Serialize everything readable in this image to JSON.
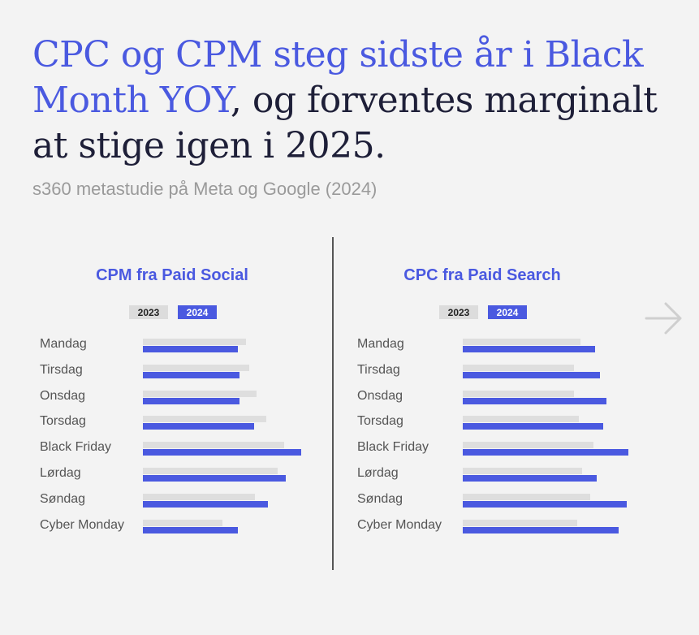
{
  "headline": {
    "highlight": "CPC og CPM steg sidste år i Black Month YOY",
    "rest": ", og forventes marginalt at stige igen i 2025."
  },
  "subtitle": "s360 metastudie på Meta og Google (2024)",
  "colors": {
    "accent": "#4a59e0",
    "bar_2023": "#dedede",
    "text": "#1e1f38"
  },
  "icons": {
    "next": "arrow-right-icon"
  },
  "chart_data": [
    {
      "type": "bar",
      "orientation": "horizontal",
      "title": "CPM fra Paid Social",
      "legend": [
        "2023",
        "2024"
      ],
      "categories": [
        "Mandag",
        "Tirsdag",
        "Onsdag",
        "Torsdag",
        "Black Friday",
        "Lørdag",
        "Søndag",
        "Cyber Monday"
      ],
      "series": [
        {
          "name": "2023",
          "values": [
            0.65,
            0.67,
            0.72,
            0.78,
            0.89,
            0.85,
            0.71,
            0.5
          ]
        },
        {
          "name": "2024",
          "values": [
            0.6,
            0.61,
            0.61,
            0.7,
            1.0,
            0.9,
            0.79,
            0.6
          ]
        }
      ],
      "xlim": [
        0,
        1
      ],
      "grid": false,
      "legend_position": "top-center"
    },
    {
      "type": "bar",
      "orientation": "horizontal",
      "title": "CPC fra Paid Search",
      "legend": [
        "2023",
        "2024"
      ],
      "categories": [
        "Mandag",
        "Tirsdag",
        "Onsdag",
        "Torsdag",
        "Black Friday",
        "Lørdag",
        "Søndag",
        "Cyber Monday"
      ],
      "series": [
        {
          "name": "2023",
          "values": [
            0.71,
            0.67,
            0.67,
            0.7,
            0.79,
            0.72,
            0.77,
            0.69
          ]
        },
        {
          "name": "2024",
          "values": [
            0.8,
            0.83,
            0.87,
            0.85,
            1.0,
            0.81,
            0.99,
            0.94
          ]
        }
      ],
      "xlim": [
        0,
        1
      ],
      "grid": false,
      "legend_position": "top-center"
    }
  ]
}
